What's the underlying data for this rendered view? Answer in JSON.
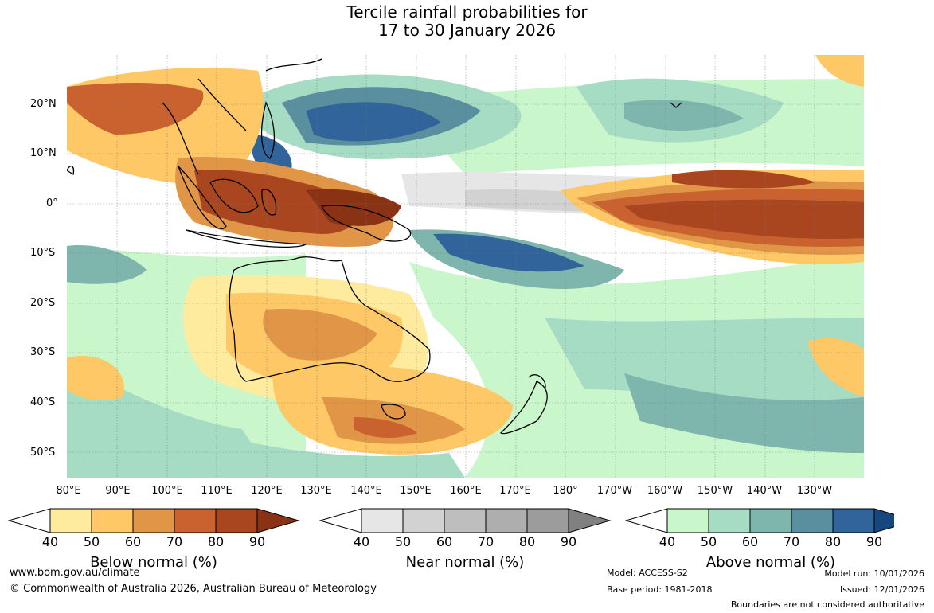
{
  "title": {
    "line1": "Tercile rainfall probabilities for",
    "line2": "17 to 30 January 2026"
  },
  "lat_labels": [
    "20°N",
    "10°N",
    "0°",
    "10°S",
    "20°S",
    "30°S",
    "40°S",
    "50°S"
  ],
  "lon_labels": [
    "80°E",
    "90°E",
    "100°E",
    "110°E",
    "120°E",
    "130°E",
    "140°E",
    "150°E",
    "160°E",
    "170°E",
    "180°",
    "170°W",
    "160°W",
    "150°W",
    "140°W",
    "130°W"
  ],
  "colorbars": [
    {
      "label": "Below normal (%)",
      "ticks": [
        "40",
        "50",
        "60",
        "70",
        "80",
        "90"
      ],
      "colors": [
        "#ffffff",
        "#ffeb9e",
        "#fdc865",
        "#e09646",
        "#c9622e",
        "#a9461f",
        "#8a3214"
      ]
    },
    {
      "label": "Near normal (%)",
      "ticks": [
        "40",
        "50",
        "60",
        "70",
        "80",
        "90"
      ],
      "colors": [
        "#ffffff",
        "#e6e6e6",
        "#d2d2d2",
        "#bebebe",
        "#aeaeae",
        "#9c9c9c",
        "#808080"
      ]
    },
    {
      "label": "Above normal (%)",
      "ticks": [
        "40",
        "50",
        "60",
        "70",
        "80",
        "90"
      ],
      "colors": [
        "#ffffff",
        "#c9f7cb",
        "#a6dcc4",
        "#7eb5ad",
        "#598f9f",
        "#30649a",
        "#17477f"
      ]
    }
  ],
  "footer": {
    "url": "www.bom.gov.au/climate",
    "copyright": "© Commonwealth of Australia 2026, Australian Bureau of Meteorology",
    "model": "Model: ACCESS-S2",
    "base_period": "Base period: 1981-2018",
    "model_run": "Model run: 10/01/2026",
    "issued": "Issued: 12/01/2026",
    "disclaimer": "Boundaries are not considered authoritative"
  }
}
